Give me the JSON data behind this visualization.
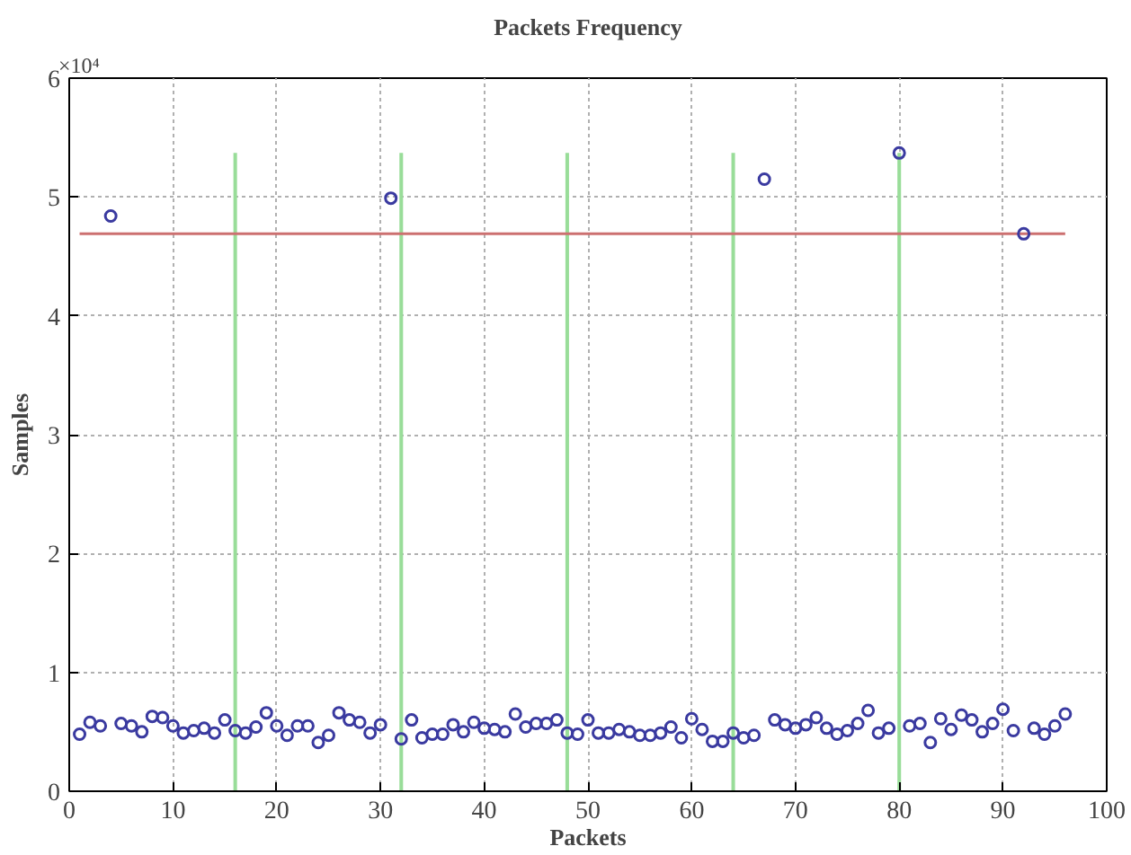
{
  "chart_data": {
    "type": "scatter",
    "title": "Packets Frequency",
    "xlabel": "Packets",
    "ylabel": "Samples",
    "annotations": [
      "×10⁴"
    ],
    "xlim": [
      0,
      100
    ],
    "xticks": [
      0,
      10,
      20,
      30,
      40,
      50,
      60,
      70,
      80,
      90,
      100
    ],
    "ylim": [
      0,
      6
    ],
    "yticks": [
      0,
      1,
      2,
      3,
      4,
      5,
      6
    ],
    "grid": true,
    "series": [
      {
        "type": "bar",
        "color": "#99dd99",
        "x": [
          16,
          32,
          48,
          64,
          80
        ],
        "values": [
          5.37,
          5.37,
          5.37,
          5.37,
          5.37
        ]
      },
      {
        "type": "line",
        "color": "#cc7070",
        "x": [
          1,
          96
        ],
        "values": [
          4.69,
          4.69
        ]
      },
      {
        "marker": "circle",
        "color": "#3a3aa0",
        "x": [
          1,
          2,
          3,
          4,
          5,
          6,
          7,
          8,
          9,
          10,
          11,
          12,
          13,
          14,
          15,
          16,
          17,
          18,
          19,
          20,
          21,
          22,
          23,
          24,
          25,
          26,
          27,
          28,
          29,
          30,
          31,
          32,
          33,
          34,
          35,
          36,
          37,
          38,
          39,
          40,
          41,
          42,
          43,
          44,
          45,
          46,
          47,
          48,
          49,
          50,
          51,
          52,
          53,
          54,
          55,
          56,
          57,
          58,
          59,
          60,
          61,
          62,
          63,
          64,
          65,
          66,
          67,
          68,
          69,
          70,
          71,
          72,
          73,
          74,
          75,
          76,
          77,
          78,
          79,
          80,
          81,
          82,
          83,
          84,
          85,
          86,
          87,
          88,
          89,
          90,
          91,
          92,
          93,
          94,
          95,
          96
        ],
        "values": [
          0.48,
          0.58,
          0.55,
          4.84,
          0.57,
          0.55,
          0.5,
          0.63,
          0.62,
          0.55,
          0.49,
          0.51,
          0.53,
          0.49,
          0.6,
          0.51,
          0.49,
          0.54,
          0.66,
          0.55,
          0.47,
          0.55,
          0.55,
          0.41,
          0.47,
          0.66,
          0.6,
          0.58,
          0.49,
          0.56,
          4.99,
          0.44,
          0.6,
          0.45,
          0.48,
          0.48,
          0.56,
          0.5,
          0.58,
          0.53,
          0.52,
          0.5,
          0.65,
          0.54,
          0.57,
          0.57,
          0.6,
          0.49,
          0.48,
          0.6,
          0.49,
          0.49,
          0.52,
          0.5,
          0.47,
          0.47,
          0.49,
          0.54,
          0.45,
          0.61,
          0.52,
          0.42,
          0.42,
          0.49,
          0.45,
          0.47,
          5.15,
          0.6,
          0.56,
          0.53,
          0.56,
          0.62,
          0.53,
          0.48,
          0.51,
          0.57,
          0.68,
          0.49,
          0.53,
          5.37,
          0.55,
          0.57,
          0.41,
          0.61,
          0.52,
          0.64,
          0.6,
          0.5,
          0.57,
          0.69,
          0.51,
          4.69,
          0.53,
          0.48,
          0.55,
          0.65
        ]
      }
    ]
  }
}
